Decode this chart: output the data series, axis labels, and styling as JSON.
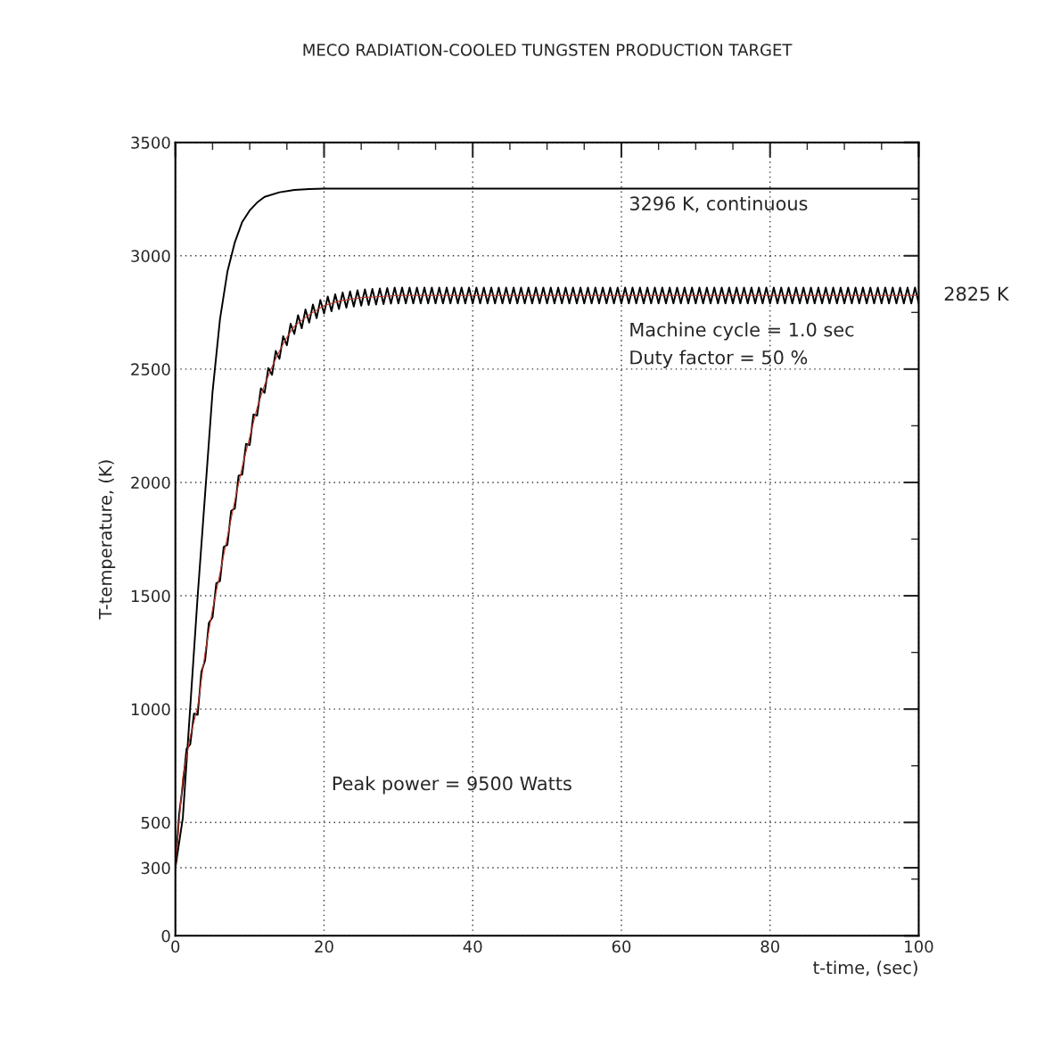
{
  "chart_data": {
    "type": "line",
    "title": "MECO RADIATION-COOLED TUNGSTEN PRODUCTION TARGET",
    "xlabel": "t-time, (sec)",
    "ylabel": "T-temperature, (K)",
    "xlim": [
      0,
      100
    ],
    "xticks": [
      0,
      20,
      40,
      60,
      80,
      100
    ],
    "ylim": [
      0,
      3500
    ],
    "yticks": [
      0,
      300,
      500,
      1000,
      1500,
      2000,
      2500,
      3000,
      3500
    ],
    "grid": true,
    "legend": false,
    "marker": "none",
    "line_style": "solid",
    "series": [
      {
        "color": "#000000",
        "x": [
          0,
          1,
          2,
          3,
          4,
          5,
          6,
          7,
          8,
          9,
          10,
          11,
          12,
          14,
          16,
          18,
          20,
          100
        ],
        "values": [
          300,
          520,
          1010,
          1500,
          1950,
          2400,
          2720,
          2930,
          3060,
          3150,
          3200,
          3235,
          3260,
          3280,
          3290,
          3294,
          3296,
          3296
        ]
      },
      {
        "color": "#000000",
        "x": [
          0,
          0.5,
          1,
          1.5,
          2,
          2.5,
          3,
          3.5,
          4,
          4.5,
          5,
          5.5,
          6,
          6.5,
          7,
          7.5,
          8,
          8.5,
          9,
          9.5,
          10,
          10.5,
          11,
          11.5,
          12,
          12.5,
          13,
          13.5,
          14,
          14.5,
          15,
          15.5,
          16,
          16.5,
          17,
          17.5,
          18,
          18.5,
          19,
          19.5,
          20,
          20.5,
          21,
          21.5,
          22,
          22.5,
          23,
          23.5,
          24,
          24.5,
          25,
          25.5,
          26,
          26.5,
          27,
          27.5,
          28,
          28.5,
          29,
          29.5,
          30,
          30.5,
          31,
          31.5,
          32,
          32.5,
          33,
          33.5,
          34,
          34.5,
          35,
          35.5,
          36,
          36.5,
          37,
          37.5,
          38,
          38.5,
          39,
          39.5,
          40,
          40.5,
          41,
          41.5,
          42,
          42.5,
          43,
          43.5,
          44,
          44.5,
          45,
          45.5,
          46,
          46.5,
          47,
          47.5,
          48,
          48.5,
          49,
          49.5,
          50,
          50.5,
          51,
          51.5,
          52,
          52.5,
          53,
          53.5,
          54,
          54.5,
          55,
          55.5,
          56,
          56.5,
          57,
          57.5,
          58,
          58.5,
          59,
          59.5,
          60,
          60.5,
          61,
          61.5,
          62,
          62.5,
          63,
          63.5,
          64,
          64.5,
          65,
          65.5,
          66,
          66.5,
          67,
          67.5,
          68,
          68.5,
          69,
          69.5,
          70,
          70.5,
          71,
          71.5,
          72,
          72.5,
          73,
          73.5,
          74,
          74.5,
          75,
          75.5,
          76,
          76.5,
          77,
          77.5,
          78,
          78.5,
          79,
          79.5,
          80,
          80.5,
          81,
          81.5,
          82,
          82.5,
          83,
          83.5,
          84,
          84.5,
          85,
          85.5,
          86,
          86.5,
          87,
          87.5,
          88,
          88.5,
          89,
          89.5,
          90,
          90.5,
          91,
          91.5,
          92,
          92.5,
          93,
          93.5,
          94,
          94.5,
          95,
          95.5,
          96,
          96.5,
          97,
          97.5,
          98,
          98.5,
          99,
          99.5,
          100
        ],
        "values": [
          300,
          535,
          665,
          825,
          845,
          980,
          975,
          1165,
          1215,
          1380,
          1405,
          1555,
          1565,
          1715,
          1725,
          1875,
          1885,
          2030,
          2035,
          2170,
          2165,
          2300,
          2295,
          2415,
          2395,
          2505,
          2475,
          2580,
          2545,
          2645,
          2605,
          2700,
          2655,
          2738,
          2680,
          2763,
          2705,
          2785,
          2725,
          2805,
          2745,
          2820,
          2755,
          2830,
          2765,
          2838,
          2771,
          2843,
          2776,
          2848,
          2780,
          2852,
          2783,
          2854,
          2785,
          2856,
          2787,
          2858,
          2789,
          2860,
          2790,
          2860,
          2790,
          2860,
          2790,
          2860,
          2790,
          2860,
          2790,
          2860,
          2790,
          2860,
          2790,
          2860,
          2790,
          2860,
          2790,
          2860,
          2790,
          2860,
          2790,
          2860,
          2790,
          2860,
          2790,
          2860,
          2790,
          2860,
          2790,
          2860,
          2790,
          2860,
          2790,
          2860,
          2790,
          2860,
          2790,
          2860,
          2790,
          2860,
          2790,
          2860,
          2790,
          2860,
          2790,
          2860,
          2790,
          2860,
          2790,
          2860,
          2790,
          2860,
          2790,
          2860,
          2790,
          2860,
          2790,
          2860,
          2790,
          2860,
          2790,
          2860,
          2790,
          2860,
          2790,
          2860,
          2790,
          2860,
          2790,
          2860,
          2790,
          2860,
          2790,
          2860,
          2790,
          2860,
          2790,
          2860,
          2790,
          2860,
          2790,
          2860,
          2790,
          2860,
          2790,
          2860,
          2790,
          2860,
          2790,
          2860,
          2790,
          2860,
          2790,
          2860,
          2790,
          2860,
          2790,
          2860,
          2790,
          2860,
          2790,
          2860,
          2790,
          2860,
          2790,
          2860,
          2790,
          2860,
          2790,
          2860,
          2790,
          2860,
          2790,
          2860,
          2790,
          2860,
          2790,
          2860,
          2790,
          2860,
          2790,
          2860,
          2790,
          2860,
          2790,
          2860,
          2790,
          2860,
          2790,
          2860,
          2790,
          2860,
          2790,
          2860,
          2790,
          2860,
          2790,
          2860,
          2790,
          2860,
          2790
        ]
      },
      {
        "color": "#c0392b",
        "x": [
          0,
          1,
          2,
          3,
          4,
          5,
          6,
          7,
          8,
          9,
          10,
          11,
          12,
          13,
          14,
          15,
          16,
          18,
          20,
          22,
          25,
          30,
          100
        ],
        "values": [
          300,
          700,
          880,
          1010,
          1250,
          1440,
          1600,
          1760,
          1920,
          2070,
          2200,
          2330,
          2430,
          2510,
          2580,
          2640,
          2690,
          2740,
          2780,
          2800,
          2815,
          2825,
          2825
        ]
      }
    ],
    "annotations": [
      {
        "text": "3296 K, continuous",
        "x": 61,
        "y": 3296
      },
      {
        "text": "2825 K",
        "x": 100,
        "y": 2825
      },
      "Machine cycle = 1.0 sec",
      "Duty factor = 50 %",
      "Peak power = 9500 Watts"
    ]
  }
}
